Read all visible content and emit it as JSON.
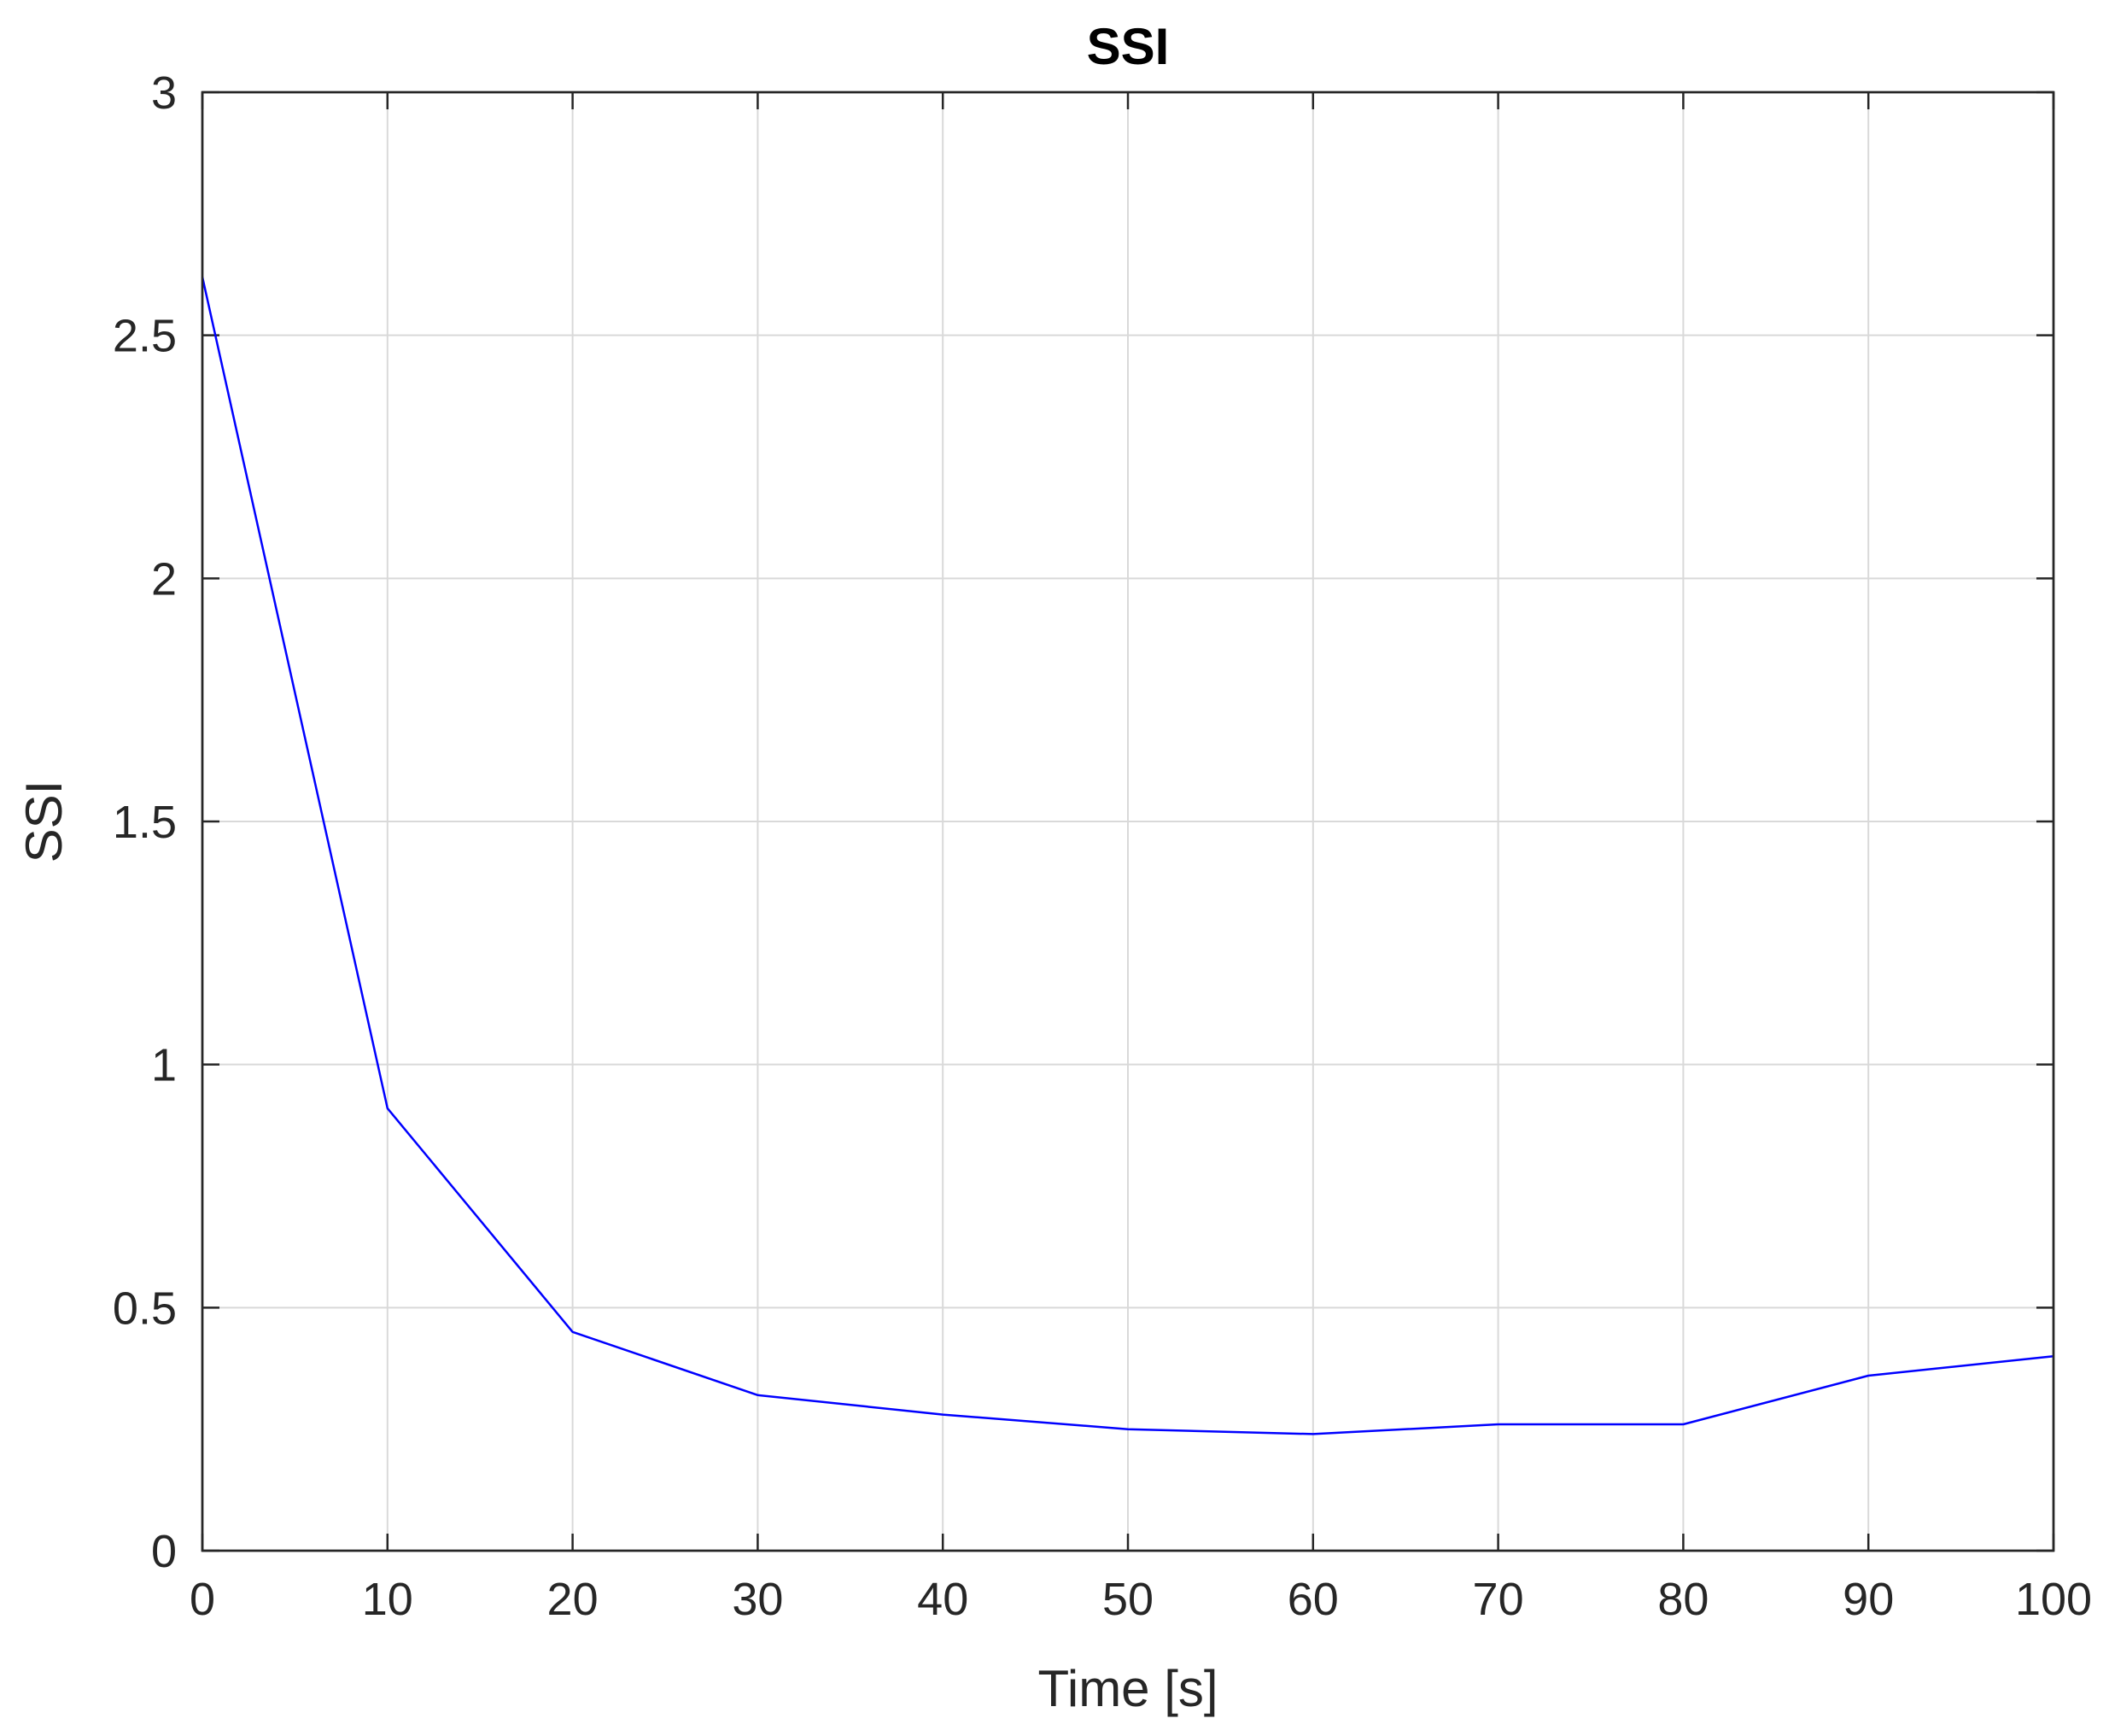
{
  "chart_data": {
    "type": "line",
    "title": "SSI",
    "xlabel": "Time [s]",
    "ylabel": "SSI",
    "xlim": [
      0,
      100
    ],
    "ylim": [
      0,
      3
    ],
    "xticks": [
      0,
      10,
      20,
      30,
      40,
      50,
      60,
      70,
      80,
      90,
      100
    ],
    "xtick_labels": [
      "0",
      "10",
      "20",
      "30",
      "40",
      "50",
      "60",
      "70",
      "80",
      "90",
      "100"
    ],
    "yticks": [
      0,
      0.5,
      1,
      1.5,
      2,
      2.5,
      3
    ],
    "ytick_labels": [
      "0",
      "0.5",
      "1",
      "1.5",
      "2",
      "2.5",
      "3"
    ],
    "grid": true,
    "series": [
      {
        "color": "#0000ff",
        "x": [
          0,
          10,
          20,
          30,
          40,
          50,
          60,
          70,
          80,
          90,
          100
        ],
        "y": [
          2.62,
          0.91,
          0.45,
          0.32,
          0.28,
          0.25,
          0.24,
          0.26,
          0.26,
          0.36,
          0.4
        ]
      }
    ]
  }
}
